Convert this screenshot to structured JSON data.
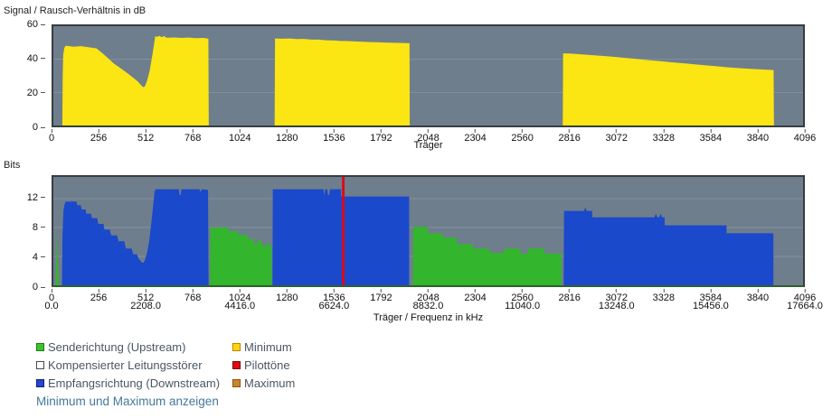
{
  "colors": {
    "plot_background": "#6e7e8c",
    "gridline": "#81919f",
    "plot_border": "#383d42",
    "bits_baseline": "#2f5f2f",
    "snr_yellow": "#fbe513",
    "downstream_blue": "#1b49cb",
    "upstream_green": "#33b52e",
    "pilot_red": "#e30613",
    "legend_text": "#4a5763",
    "link_blue": "#44789c"
  },
  "chart_data": [
    {
      "id": "snr",
      "type": "area",
      "title": "Signal / Rausch-Verhältnis in dB",
      "xlabel": "Träger",
      "ylabel": "Signal / Rausch-Verhältnis in dB",
      "xlim": [
        0,
        4096
      ],
      "ylim": [
        0,
        60
      ],
      "x_ticks": [
        0,
        256,
        512,
        768,
        1024,
        1280,
        1536,
        1792,
        2048,
        2304,
        2560,
        2816,
        3072,
        3328,
        3584,
        3840,
        4096
      ],
      "y_ticks": [
        0,
        20,
        40,
        60
      ],
      "gridlines_y": [
        20,
        40
      ],
      "series": [
        {
          "name": "snr_db",
          "color_key": "snr_yellow",
          "regions": [
            [
              [
                49,
                0
              ],
              [
                51,
                30
              ],
              [
                54,
                43
              ],
              [
                60,
                47
              ],
              [
                68,
                48.2
              ],
              [
                110,
                47.6
              ],
              [
                150,
                47.9
              ],
              [
                190,
                47.3
              ],
              [
                236,
                46.6
              ],
              [
                270,
                43.5
              ],
              [
                300,
                40.5
              ],
              [
                330,
                37.5
              ],
              [
                365,
                34.8
              ],
              [
                400,
                32
              ],
              [
                435,
                29
              ],
              [
                462,
                26.5
              ],
              [
                480,
                24.3
              ],
              [
                491,
                23.2
              ],
              [
                500,
                23.6
              ],
              [
                512,
                27
              ],
              [
                526,
                33
              ],
              [
                540,
                42
              ],
              [
                550,
                49
              ],
              [
                557,
                54
              ],
              [
                568,
                53.5
              ],
              [
                580,
                54.2
              ],
              [
                592,
                53.3
              ],
              [
                605,
                54
              ],
              [
                620,
                53
              ],
              [
                660,
                53.2
              ],
              [
                700,
                52.9
              ],
              [
                740,
                53.1
              ],
              [
                780,
                52.8
              ],
              [
                820,
                52.9
              ],
              [
                847,
                52.4
              ],
              [
                849,
                0
              ]
            ],
            [
              [
                1209,
                0
              ],
              [
                1211,
                52.6
              ],
              [
                1250,
                52.4
              ],
              [
                1290,
                52.6
              ],
              [
                1330,
                52.2
              ],
              [
                1370,
                52.3
              ],
              [
                1410,
                51.9
              ],
              [
                1450,
                51.9
              ],
              [
                1490,
                51.5
              ],
              [
                1530,
                51.4
              ],
              [
                1570,
                51.1
              ],
              [
                1610,
                51
              ],
              [
                1650,
                50.8
              ],
              [
                1690,
                50.6
              ],
              [
                1730,
                50.4
              ],
              [
                1770,
                50.3
              ],
              [
                1810,
                50.1
              ],
              [
                1850,
                50
              ],
              [
                1890,
                49.9
              ],
              [
                1930,
                49.8
              ],
              [
                1946,
                49.7
              ],
              [
                1947,
                0
              ]
            ],
            [
              [
                2783,
                0
              ],
              [
                2785,
                43.6
              ],
              [
                2830,
                43.4
              ],
              [
                2880,
                43
              ],
              [
                2930,
                42.6
              ],
              [
                2980,
                42.2
              ],
              [
                3030,
                41.8
              ],
              [
                3080,
                41.3
              ],
              [
                3130,
                40.8
              ],
              [
                3180,
                40.3
              ],
              [
                3230,
                39.7
              ],
              [
                3280,
                39.2
              ],
              [
                3330,
                38.7
              ],
              [
                3380,
                38.2
              ],
              [
                3430,
                37.7
              ],
              [
                3480,
                37.2
              ],
              [
                3530,
                36.7
              ],
              [
                3580,
                36.2
              ],
              [
                3630,
                35.7
              ],
              [
                3680,
                35.2
              ],
              [
                3730,
                34.8
              ],
              [
                3780,
                34.4
              ],
              [
                3830,
                34.1
              ],
              [
                3880,
                33.8
              ],
              [
                3935,
                33.5
              ],
              [
                3937,
                0
              ]
            ]
          ]
        }
      ]
    },
    {
      "id": "bits",
      "type": "area",
      "title": "Bits",
      "xlabel": "Träger / Frequenz in kHz",
      "ylabel": "Bits",
      "xlim": [
        0,
        4096
      ],
      "ylim": [
        0,
        15
      ],
      "x_ticks": [
        0,
        256,
        512,
        768,
        1024,
        1280,
        1536,
        1792,
        2048,
        2304,
        2560,
        2816,
        3072,
        3328,
        3584,
        3840,
        4096
      ],
      "x_ticks_freq": [
        {
          "x": 0,
          "label": "0.0"
        },
        {
          "x": 512,
          "label": "2208.0"
        },
        {
          "x": 1024,
          "label": "4416.0"
        },
        {
          "x": 1536,
          "label": "6624.0"
        },
        {
          "x": 2048,
          "label": "8832.0"
        },
        {
          "x": 2560,
          "label": "11040.0"
        },
        {
          "x": 3072,
          "label": "13248.0"
        },
        {
          "x": 3584,
          "label": "15456.0"
        },
        {
          "x": 4096,
          "label": "17664.0"
        }
      ],
      "y_ticks": [
        0,
        4,
        8,
        12
      ],
      "gridlines_y": [
        4,
        8,
        12
      ],
      "series": [
        {
          "name": "upstream_bits",
          "color_key": "upstream_green",
          "regions": [
            [
              [
                13,
                0
              ],
              [
                16,
                4
              ],
              [
                19,
                7.2
              ],
              [
                22,
                5.2
              ],
              [
                26,
                2.6
              ],
              [
                31,
                0
              ]
            ],
            [
              [
                856,
                0
              ],
              [
                858,
                8
              ],
              [
                956,
                8
              ],
              [
                956,
                7.5
              ],
              [
                1010,
                7.5
              ],
              [
                1010,
                7
              ],
              [
                1062,
                7
              ],
              [
                1062,
                6.4
              ],
              [
                1096,
                6.4
              ],
              [
                1096,
                5.8
              ],
              [
                1116,
                5.8
              ],
              [
                1116,
                6.2
              ],
              [
                1138,
                6.2
              ],
              [
                1138,
                5.5
              ],
              [
                1166,
                5.5
              ],
              [
                1166,
                5.8
              ],
              [
                1182,
                5.8
              ],
              [
                1182,
                5.4
              ],
              [
                1193,
                5.4
              ],
              [
                1193,
                0
              ]
            ],
            [
              [
                1964,
                0
              ],
              [
                1966,
                8.1
              ],
              [
                2046,
                8.1
              ],
              [
                2046,
                7.2
              ],
              [
                2128,
                7.2
              ],
              [
                2128,
                6.6
              ],
              [
                2206,
                6.6
              ],
              [
                2206,
                5.7
              ],
              [
                2293,
                5.7
              ],
              [
                2293,
                5.1
              ],
              [
                2383,
                5.1
              ],
              [
                2383,
                4.5
              ],
              [
                2463,
                4.5
              ],
              [
                2463,
                5.1
              ],
              [
                2550,
                5.1
              ],
              [
                2550,
                4.4
              ],
              [
                2594,
                4.4
              ],
              [
                2594,
                5.1
              ],
              [
                2684,
                5.1
              ],
              [
                2684,
                4.4
              ],
              [
                2776,
                4.4
              ],
              [
                2776,
                0
              ]
            ]
          ]
        },
        {
          "name": "downstream_bits",
          "color_key": "downstream_blue",
          "regions": [
            [
              [
                47,
                0
              ],
              [
                50,
                7
              ],
              [
                55,
                10.3
              ],
              [
                61,
                11.2
              ],
              [
                68,
                11.6
              ],
              [
                126,
                11.6
              ],
              [
                130,
                11.1
              ],
              [
                150,
                11.1
              ],
              [
                154,
                10.5
              ],
              [
                176,
                10.5
              ],
              [
                180,
                9.9
              ],
              [
                206,
                9.9
              ],
              [
                211,
                9.3
              ],
              [
                240,
                9.3
              ],
              [
                245,
                8.5
              ],
              [
                274,
                8.5
              ],
              [
                279,
                7.7
              ],
              [
                308,
                7.7
              ],
              [
                316,
                6.9
              ],
              [
                348,
                6.9
              ],
              [
                356,
                6.1
              ],
              [
                388,
                6.1
              ],
              [
                396,
                5.1
              ],
              [
                428,
                5.1
              ],
              [
                436,
                4.3
              ],
              [
                456,
                4.3
              ],
              [
                466,
                3.7
              ],
              [
                482,
                3.2
              ],
              [
                492,
                3.1
              ],
              [
                500,
                3.5
              ],
              [
                512,
                4.5
              ],
              [
                524,
                6.2
              ],
              [
                536,
                8.8
              ],
              [
                546,
                11.2
              ],
              [
                553,
                13
              ],
              [
                558,
                13.3
              ],
              [
                686,
                13.3
              ],
              [
                690,
                12.5
              ],
              [
                696,
                12.5
              ],
              [
                700,
                13.3
              ],
              [
                798,
                13.3
              ],
              [
                804,
                12.9
              ],
              [
                810,
                13.3
              ],
              [
                845,
                13.2
              ],
              [
                848,
                0
              ]
            ],
            [
              [
                1197,
                0
              ],
              [
                1199,
                13.3
              ],
              [
                1476,
                13.3
              ],
              [
                1480,
                12.5
              ],
              [
                1486,
                13.3
              ],
              [
                1497,
                13.3
              ],
              [
                1501,
                12.5
              ],
              [
                1507,
                12.5
              ],
              [
                1511,
                13.3
              ],
              [
                1572,
                13.3
              ],
              [
                1572,
                12.3
              ],
              [
                1944,
                12.3
              ],
              [
                1944,
                0
              ]
            ],
            [
              [
                2788,
                0
              ],
              [
                2790,
                10.3
              ],
              [
                2900,
                10.3
              ],
              [
                2906,
                10.8
              ],
              [
                2914,
                10.3
              ],
              [
                2944,
                10.3
              ],
              [
                2944,
                9.4
              ],
              [
                3284,
                9.4
              ],
              [
                3292,
                9.9
              ],
              [
                3300,
                9.4
              ],
              [
                3310,
                9.4
              ],
              [
                3318,
                9.9
              ],
              [
                3326,
                9.4
              ],
              [
                3340,
                9.4
              ],
              [
                3340,
                8.3
              ],
              [
                3678,
                8.3
              ],
              [
                3678,
                7.2
              ],
              [
                3934,
                7.2
              ],
              [
                3934,
                0
              ]
            ]
          ]
        }
      ],
      "pilot_tones": {
        "x": 1577,
        "width": 14,
        "color_key": "pilot_red"
      }
    }
  ],
  "legend": {
    "columns": [
      [
        {
          "id": "upstream",
          "label": "Senderichtung (Upstream)",
          "fill": "#3dc32e",
          "border": "#1a7a12"
        },
        {
          "id": "compensated-line-disturber",
          "label": "Kompensierter Leitungsstörer",
          "fill": "#ffffff",
          "border": "#4a4a4a"
        },
        {
          "id": "downstream",
          "label": "Empfangsrichtung (Downstream)",
          "fill": "#2347d4",
          "border": "#101f70"
        }
      ],
      [
        {
          "id": "minimum",
          "label": "Minimum",
          "fill": "#ffd60a",
          "border": "#c87d00"
        },
        {
          "id": "pilot-tones",
          "label": "Pilottöne",
          "fill": "#e30613",
          "border": "#79040b"
        },
        {
          "id": "maximum",
          "label": "Maximum",
          "fill": "#c8872e",
          "border": "#8a5510"
        }
      ]
    ]
  },
  "action_link": {
    "label": "Minimum und Maximum anzeigen"
  }
}
